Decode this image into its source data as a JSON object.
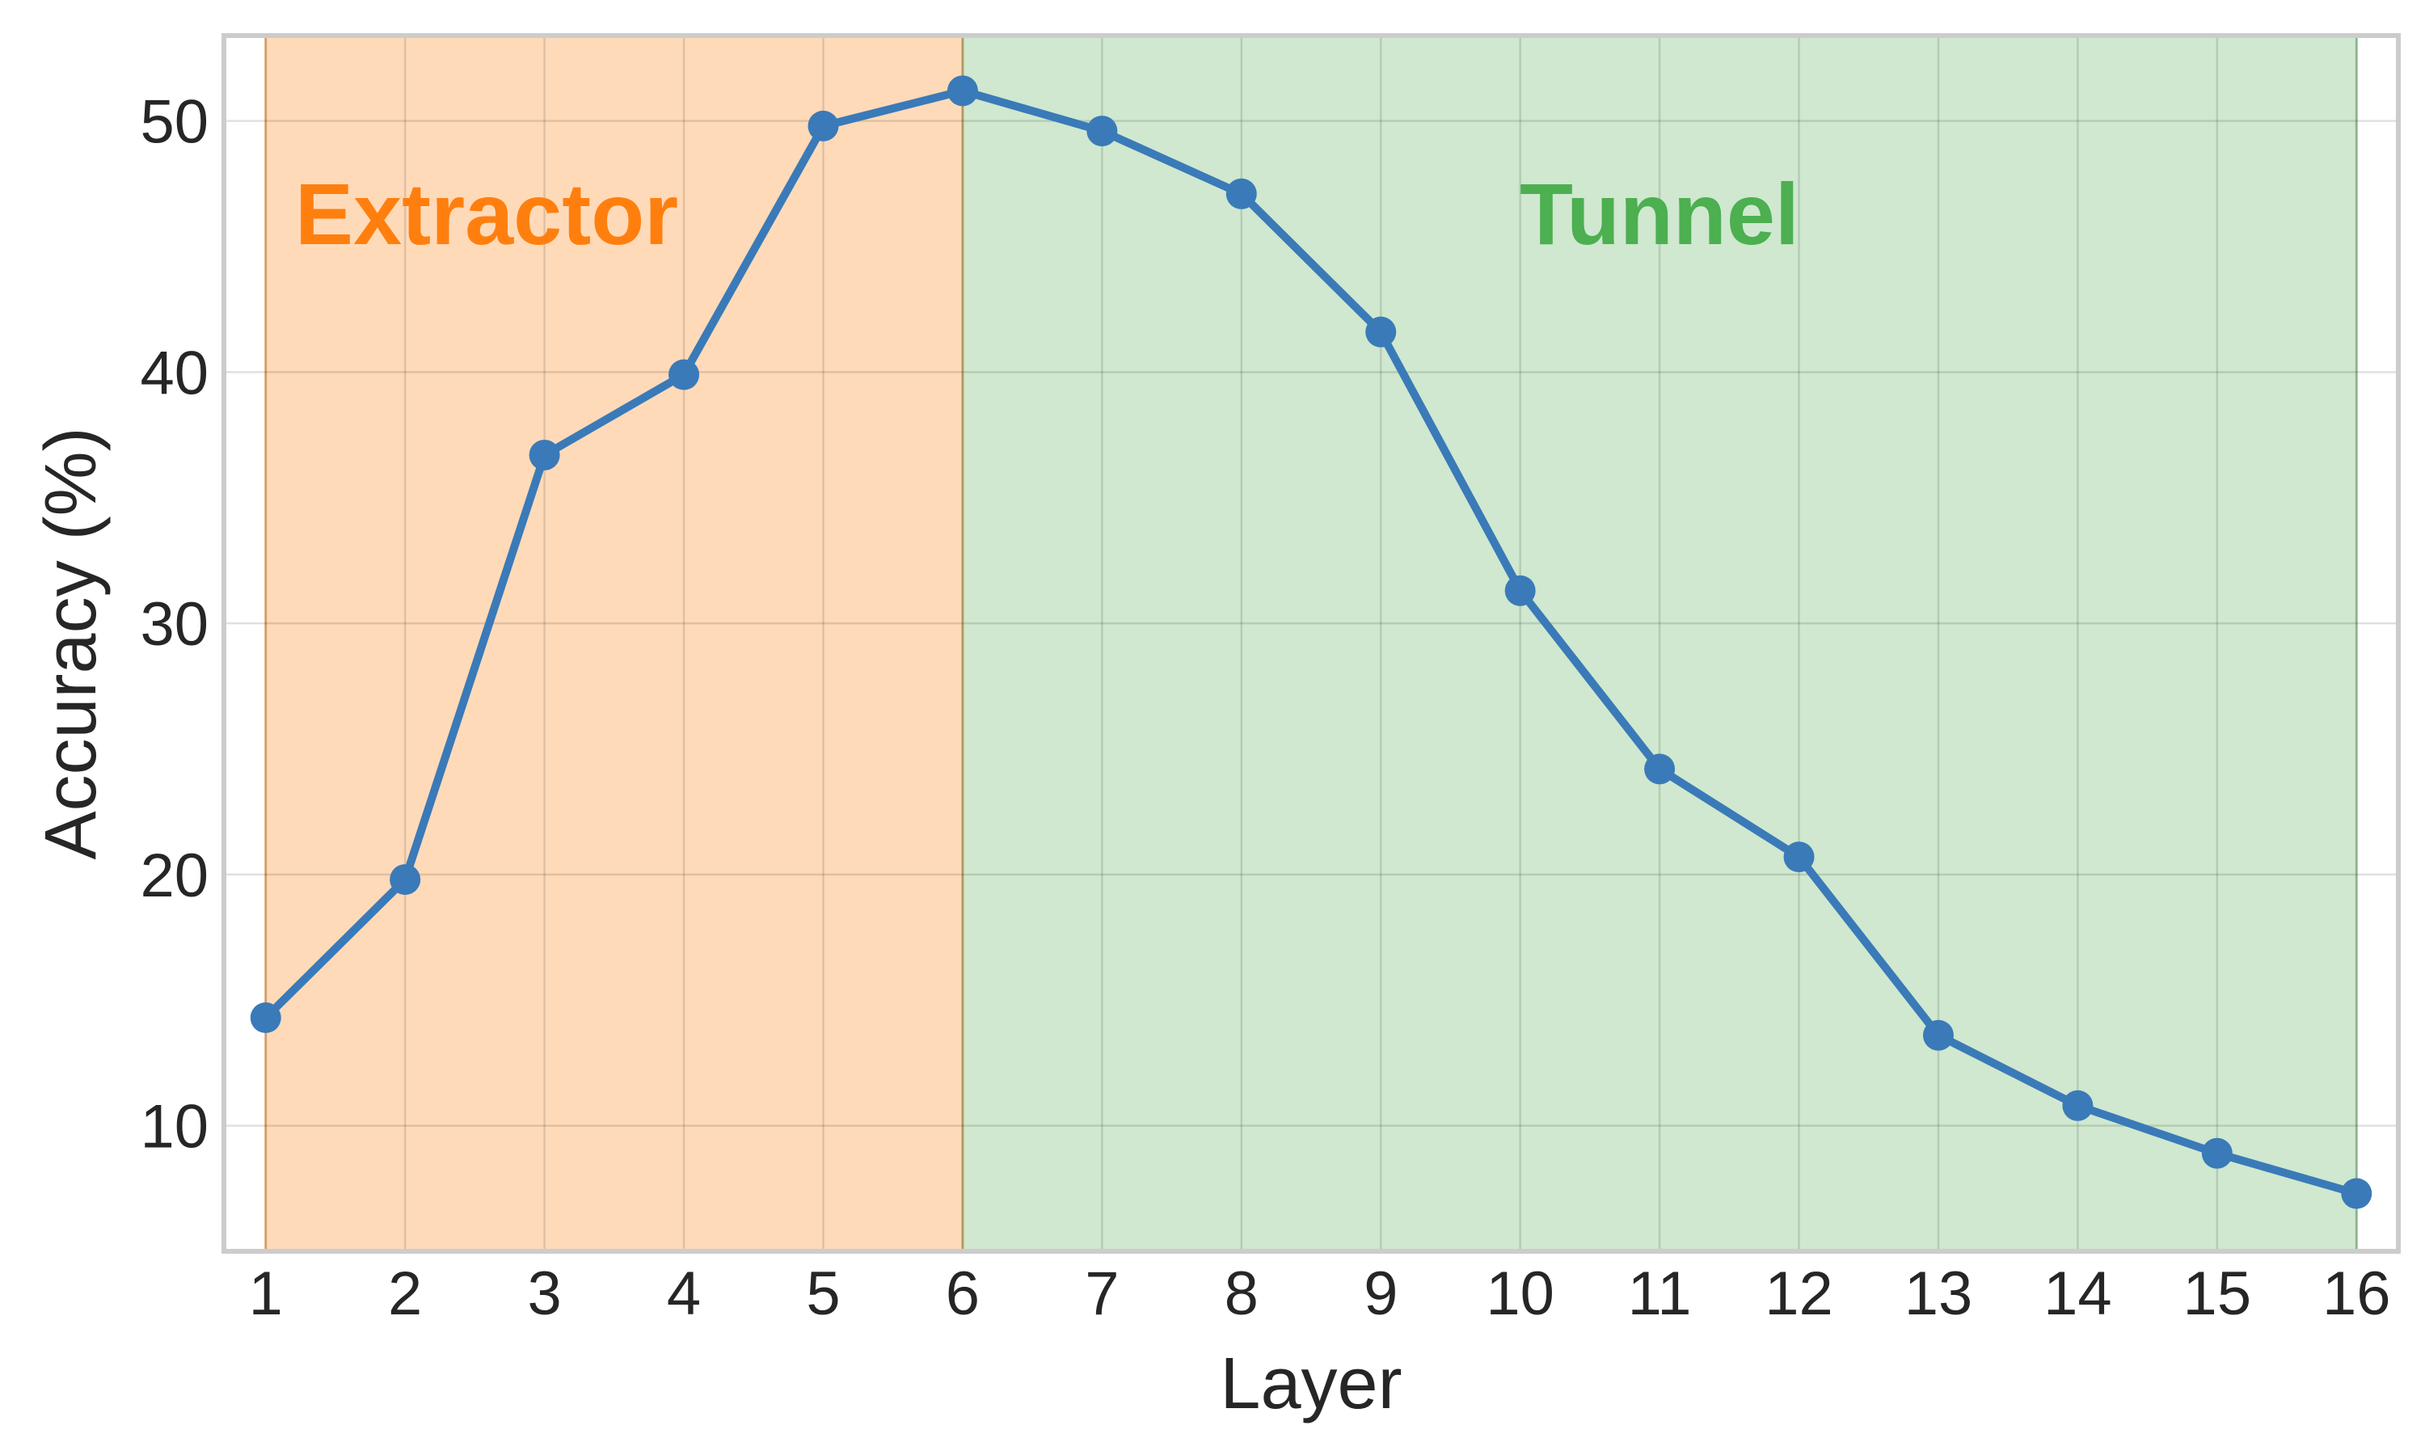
{
  "chart_data": {
    "type": "line",
    "title": "",
    "xlabel": "Layer",
    "ylabel": "Accuracy (%)",
    "x": [
      1,
      2,
      3,
      4,
      5,
      6,
      7,
      8,
      9,
      10,
      11,
      12,
      13,
      14,
      15,
      16
    ],
    "series": [
      {
        "color": "#3a7ab8",
        "values": [
          14.3,
          19.8,
          36.7,
          39.9,
          49.8,
          51.2,
          49.6,
          47.1,
          41.6,
          31.3,
          24.2,
          20.7,
          13.6,
          10.8,
          8.9,
          7.3
        ]
      }
    ],
    "xlim": [
      0.7,
      16.3
    ],
    "ylim": [
      5,
      53.4
    ],
    "xticks": [
      1,
      2,
      3,
      4,
      5,
      6,
      7,
      8,
      9,
      10,
      11,
      12,
      13,
      14,
      15,
      16
    ],
    "yticks": [
      10,
      20,
      30,
      40,
      50
    ],
    "grid": true,
    "regions": [
      {
        "label": "Extractor",
        "x_start": 1,
        "x_end": 6,
        "color": "#ffdab9",
        "label_color": "#ff7f0e"
      },
      {
        "label": "Tunnel",
        "x_start": 6,
        "x_end": 16,
        "color": "#cfe8cf",
        "label_color": "#4caf50"
      }
    ]
  }
}
